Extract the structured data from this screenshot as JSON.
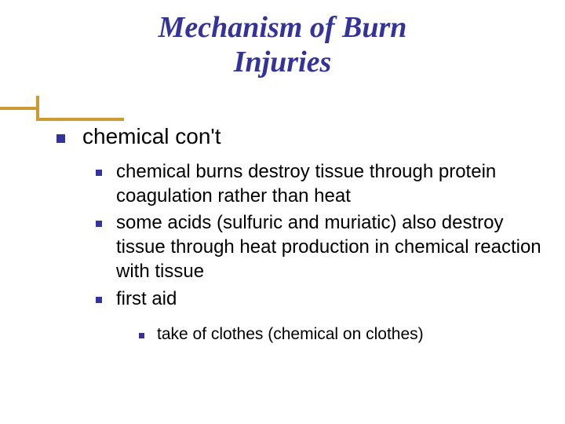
{
  "title_line1": "Mechanism of Burn",
  "title_line2": "Injuries",
  "colors": {
    "title": "#333399",
    "bullet": "#333399",
    "accent": "#cc9933",
    "text": "#000000",
    "background": "#ffffff"
  },
  "fonts": {
    "title_family": "Georgia, Times New Roman, serif",
    "body_family": "Verdana, Geneva, sans-serif",
    "title_size_pt": 38,
    "lvl1_size_pt": 28,
    "lvl2_size_pt": 24,
    "lvl3_size_pt": 21
  },
  "lvl1": {
    "text": "chemical con't"
  },
  "lvl2_items": [
    "chemical burns destroy tissue through protein coagulation  rather than  heat",
    "some acids (sulfuric and muriatic) also destroy tissue through heat production in chemical reaction with tissue",
    "first aid"
  ],
  "lvl3_items": [
    "take of clothes (chemical on clothes)"
  ]
}
